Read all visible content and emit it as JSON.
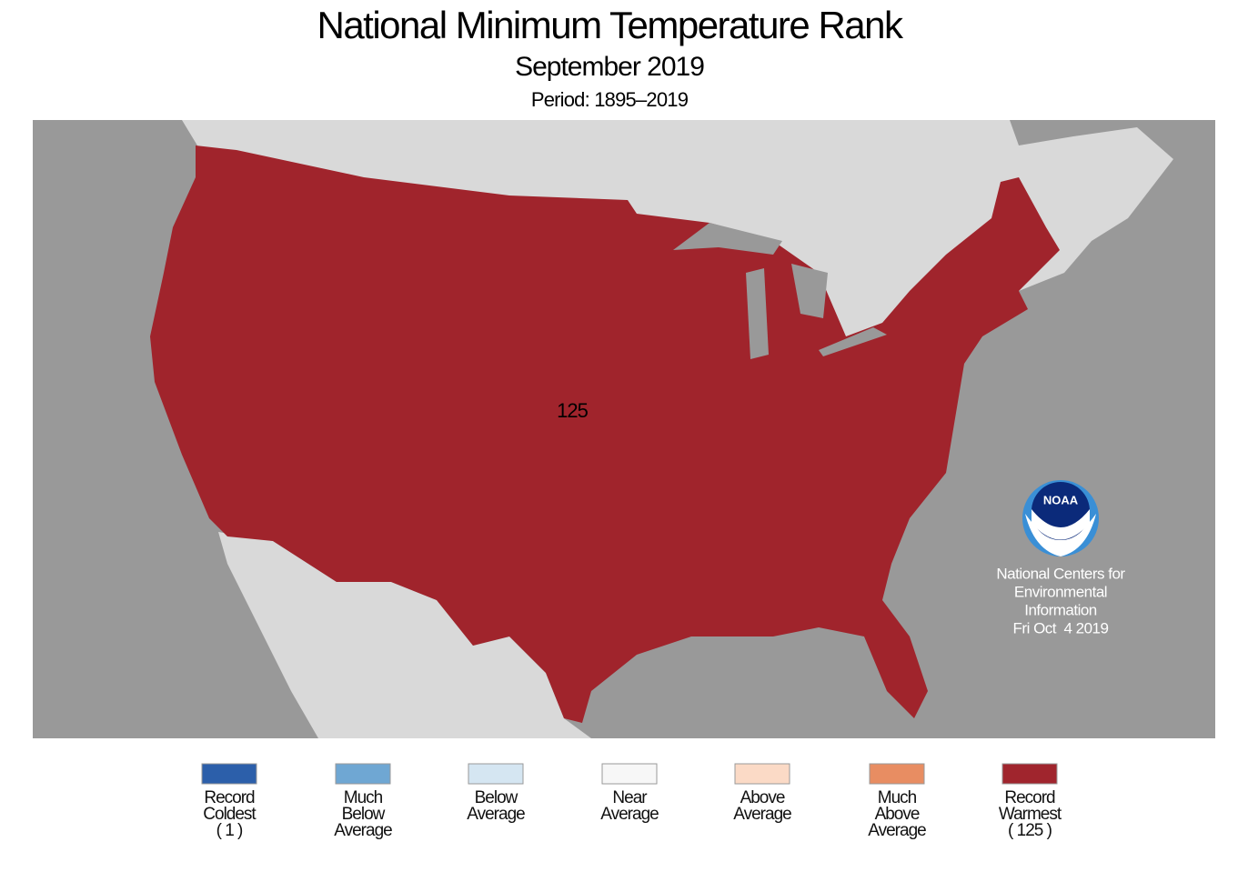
{
  "header": {
    "title": "National Minimum Temperature Rank",
    "subtitle": "September 2019",
    "period": "Period: 1895–2019"
  },
  "map": {
    "rank_label": 125
  },
  "credit": {
    "logo": "NOAA",
    "lines": [
      "National Centers for",
      "Environmental",
      "Information",
      "Fri Oct  4 2019"
    ]
  },
  "legend": [
    {
      "color": "#2c5faa",
      "lines": [
        "Record",
        "Coldest",
        "( 1 )"
      ]
    },
    {
      "color": "#6fa7d3",
      "lines": [
        "Much",
        "Below",
        "Average"
      ]
    },
    {
      "color": "#d5e6f2",
      "lines": [
        "Below",
        "Average"
      ]
    },
    {
      "color": "#f7f7f7",
      "lines": [
        "Near",
        "Average"
      ]
    },
    {
      "color": "#fbdac6",
      "lines": [
        "Above",
        "Average"
      ]
    },
    {
      "color": "#e88d62",
      "lines": [
        "Much",
        "Above",
        "Average"
      ]
    },
    {
      "color": "#a0252d",
      "lines": [
        "Record",
        "Warmest",
        "( 125 )"
      ]
    }
  ]
}
